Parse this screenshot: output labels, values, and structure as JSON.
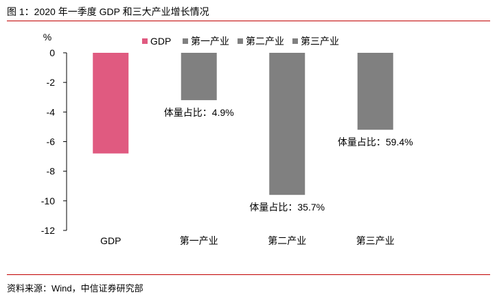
{
  "header": {
    "title": "图 1：2020 年一季度 GDP 和三大产业增长情况"
  },
  "footer": {
    "source": "资料来源：Wind，中信证券研究部"
  },
  "colors": {
    "rule": "#c00000",
    "axis": "#000000"
  },
  "chart_data": {
    "type": "bar",
    "title": "",
    "xlabel": "",
    "ylabel": "",
    "unit": "%",
    "categories": [
      "GDP",
      "第一产业",
      "第二产业",
      "第三产业"
    ],
    "values": [
      -6.8,
      -3.2,
      -9.6,
      -5.2
    ],
    "colors": [
      "#e05a80",
      "#808080",
      "#808080",
      "#808080"
    ],
    "ylim": [
      -12,
      0
    ],
    "yticks": [
      0,
      -2,
      -4,
      -6,
      -8,
      -10,
      -12
    ],
    "grid": false,
    "legend": {
      "placement": "top",
      "entries": [
        {
          "label": "GDP",
          "color": "#e05a80"
        },
        {
          "label": "第一产业",
          "color": "#808080"
        },
        {
          "label": "第二产业",
          "color": "#808080"
        },
        {
          "label": "第三产业",
          "color": "#808080"
        }
      ]
    },
    "annotations": [
      {
        "category": "第一产业",
        "text": "体量占比：4.9%"
      },
      {
        "category": "第二产业",
        "text": "体量占比：35.7%"
      },
      {
        "category": "第三产业",
        "text": "体量占比：59.4%"
      }
    ]
  }
}
